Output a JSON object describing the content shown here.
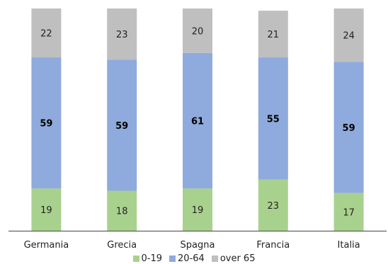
{
  "chart_data": {
    "type": "bar",
    "stacked": true,
    "orientation": "vertical",
    "categories": [
      "Germania",
      "Grecia",
      "Spagna",
      "Francia",
      "Italia"
    ],
    "series": [
      {
        "name": "0-19",
        "values": [
          19,
          18,
          19,
          23,
          17
        ],
        "color": "#a9d18e"
      },
      {
        "name": "20-64",
        "values": [
          59,
          59,
          61,
          55,
          59
        ],
        "color": "#8faadc"
      },
      {
        "name": "over 65",
        "values": [
          22,
          23,
          20,
          21,
          24
        ],
        "color": "#bfbfbf"
      }
    ],
    "ylim": [
      0,
      100
    ],
    "grid": false,
    "legend": "bottom",
    "title": "",
    "xlabel": "",
    "ylabel": ""
  }
}
